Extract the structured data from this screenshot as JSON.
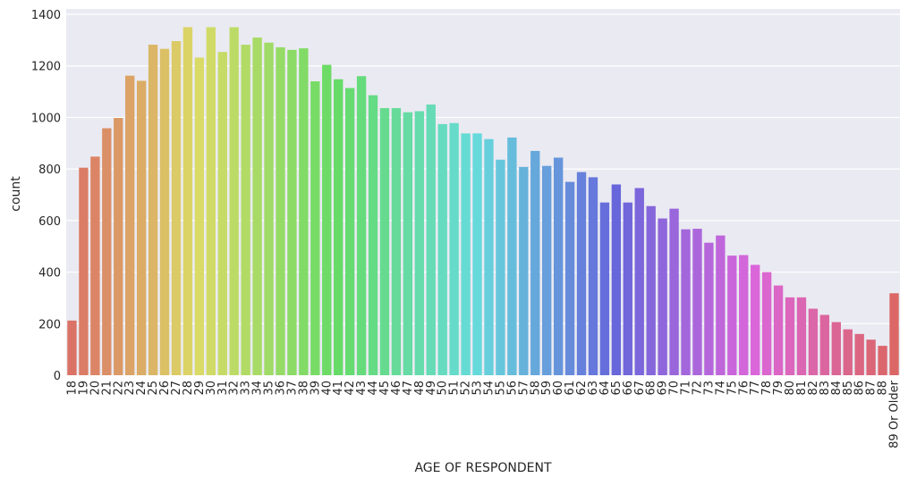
{
  "chart_data": {
    "type": "bar",
    "title": "",
    "xlabel": "AGE OF RESPONDENT",
    "ylabel": "count",
    "ylim": [
      0,
      1400
    ],
    "yticks": [
      0,
      200,
      400,
      600,
      800,
      1000,
      1200,
      1400
    ],
    "grid": true,
    "legend": "none",
    "background": "#eaeaf2",
    "categories": [
      "18",
      "19",
      "20",
      "21",
      "22",
      "23",
      "24",
      "25",
      "26",
      "27",
      "28",
      "29",
      "30",
      "31",
      "32",
      "33",
      "34",
      "35",
      "36",
      "37",
      "38",
      "39",
      "40",
      "41",
      "42",
      "43",
      "44",
      "45",
      "46",
      "47",
      "48",
      "49",
      "50",
      "51",
      "52",
      "53",
      "54",
      "55",
      "56",
      "57",
      "58",
      "59",
      "60",
      "61",
      "62",
      "63",
      "64",
      "65",
      "66",
      "67",
      "68",
      "69",
      "70",
      "71",
      "72",
      "73",
      "74",
      "75",
      "76",
      "77",
      "78",
      "79",
      "80",
      "81",
      "82",
      "83",
      "84",
      "85",
      "86",
      "87",
      "88",
      "89 Or Older"
    ],
    "values": [
      212,
      805,
      848,
      958,
      998,
      1162,
      1142,
      1282,
      1266,
      1296,
      1350,
      1232,
      1350,
      1254,
      1350,
      1282,
      1310,
      1290,
      1272,
      1262,
      1268,
      1140,
      1204,
      1148,
      1114,
      1160,
      1086,
      1036,
      1036,
      1020,
      1024,
      1050,
      974,
      978,
      938,
      938,
      916,
      836,
      922,
      808,
      870,
      812,
      844,
      750,
      788,
      768,
      670,
      740,
      670,
      726,
      656,
      608,
      646,
      566,
      568,
      514,
      542,
      464,
      466,
      428,
      400,
      348,
      302,
      302,
      258,
      234,
      206,
      178,
      160,
      138,
      114,
      318
    ]
  }
}
